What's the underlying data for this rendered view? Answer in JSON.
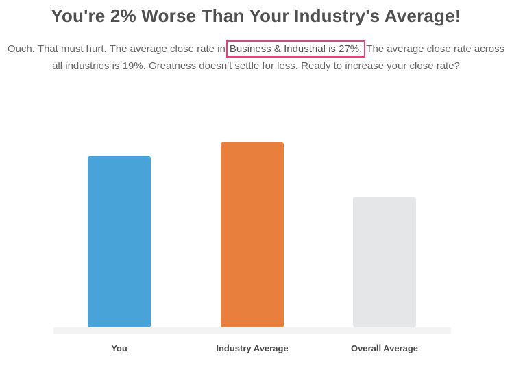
{
  "heading": "You're 2% Worse Than Your Industry's Average!",
  "intro": {
    "before": "Ouch. That must hurt. The average close rate in",
    "highlight": "Business & Industrial is 27%.",
    "after": "The average close rate across all industries is 19%. Greatness doesn't settle for less. Ready to increase your close rate?"
  },
  "colors": {
    "you": "#48a3d9",
    "industry": "#e87f3c",
    "overall": "#e5e6e8",
    "baseline": "#f3f3f3",
    "highlight_border": "#e8407a"
  },
  "chart_data": {
    "type": "bar",
    "categories": [
      "You",
      "Industry Average",
      "Overall Average"
    ],
    "values": [
      25,
      27,
      19
    ],
    "ylim": [
      0,
      40
    ],
    "grid": false,
    "legend": "none"
  }
}
